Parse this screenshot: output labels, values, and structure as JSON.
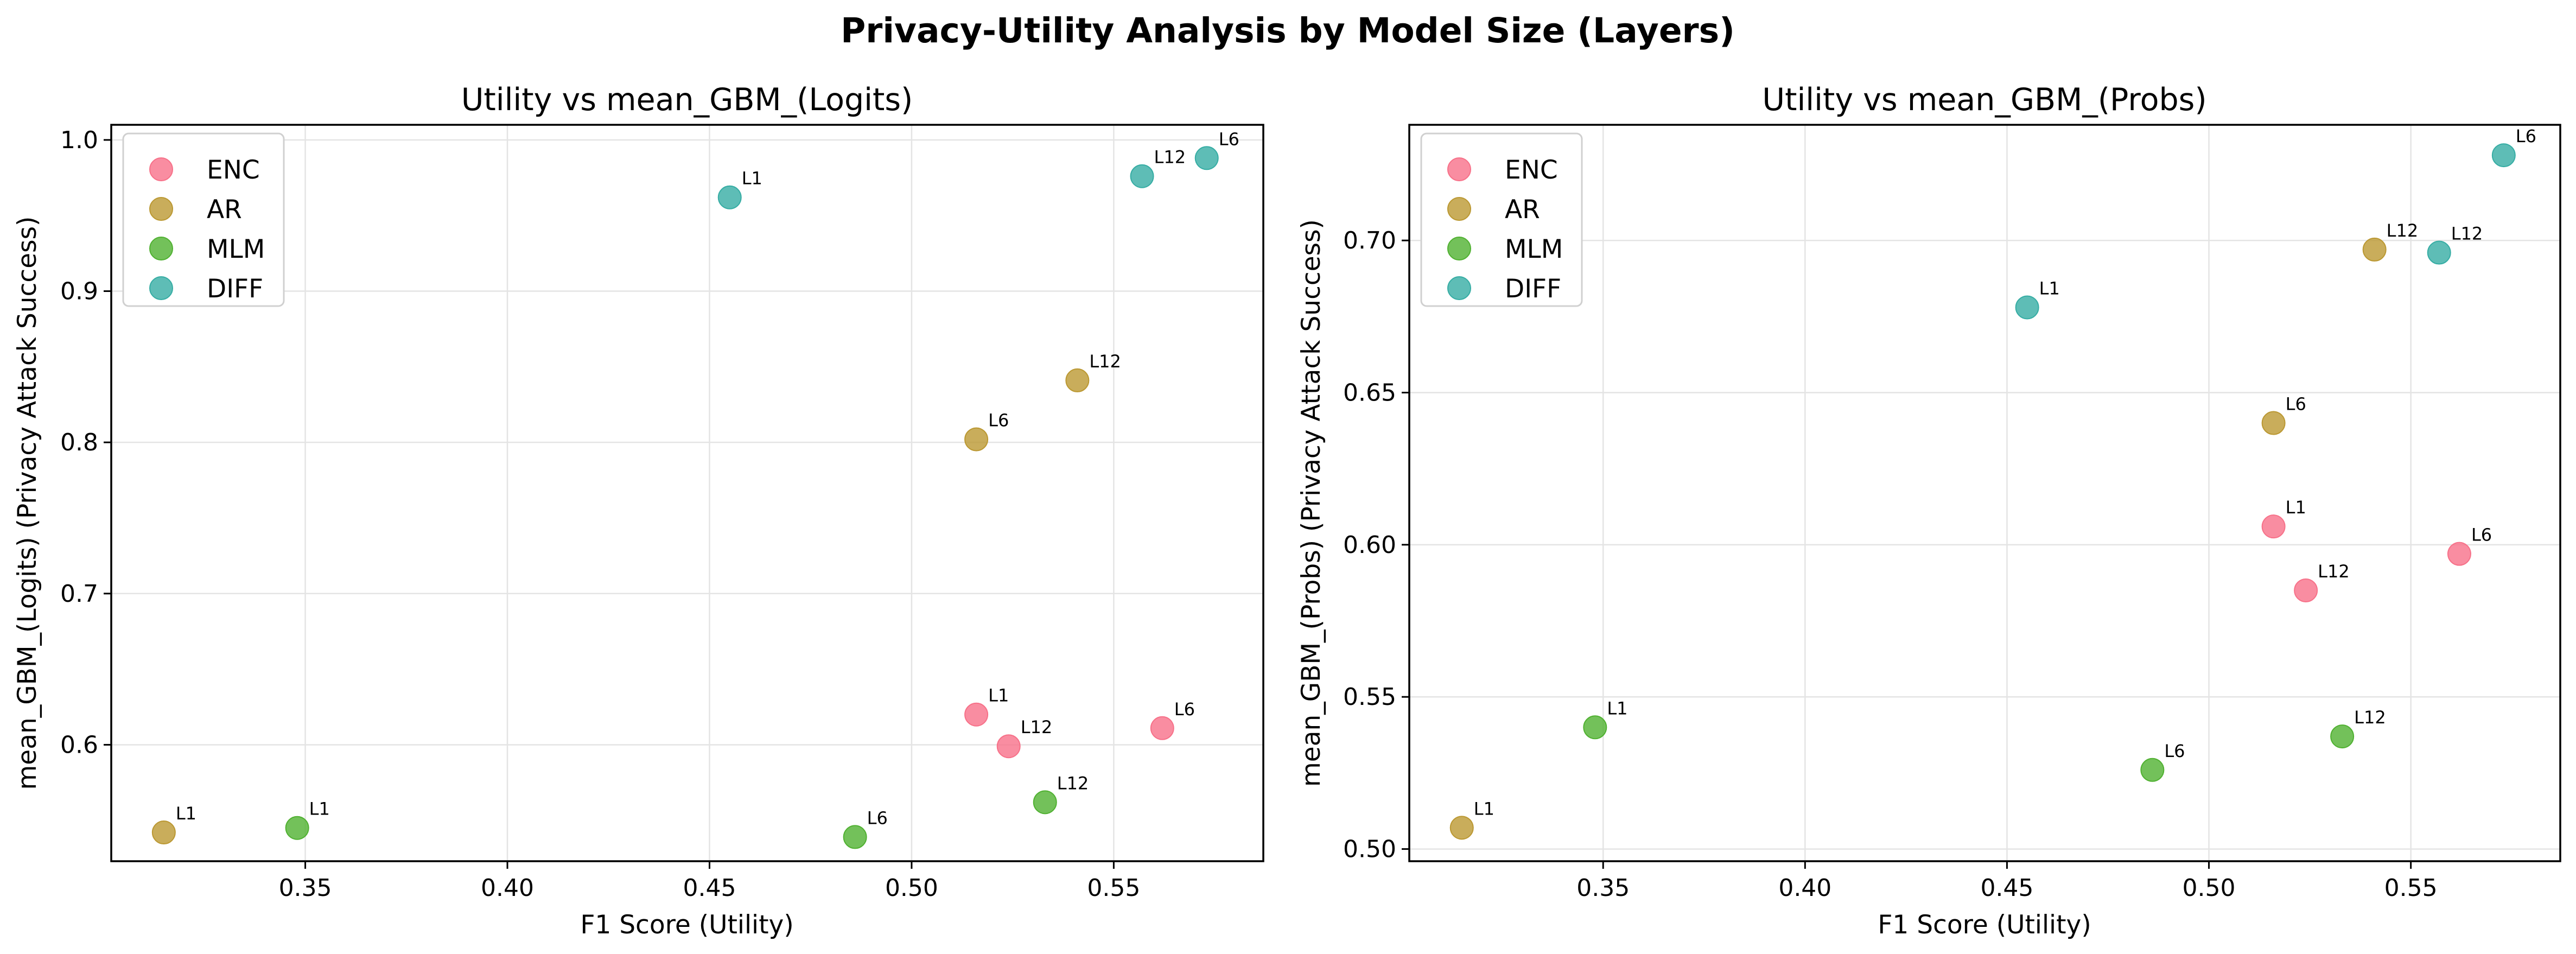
{
  "suptitle": "Privacy-Utility Analysis by Model Size (Layers)",
  "colors": {
    "ENC": "#f77189",
    "AR": "#bb9832",
    "MLM": "#50b131",
    "DIFF": "#36ada4"
  },
  "chart_data": [
    {
      "type": "scatter",
      "title": "Utility vs mean_GBM_(Logits)",
      "xlabel": "F1 Score (Utility)",
      "ylabel": "mean_GBM_(Logits) (Privacy Attack Success)",
      "xlim": [
        0.302,
        0.587
      ],
      "ylim": [
        0.523,
        1.01
      ],
      "xticks": [
        "0.35",
        "0.40",
        "0.45",
        "0.50",
        "0.55"
      ],
      "yticks": [
        "0.6",
        "0.7",
        "0.8",
        "0.9",
        "1.0"
      ],
      "legend": {
        "position": "upper-left",
        "entries": [
          "ENC",
          "AR",
          "MLM",
          "DIFF"
        ]
      },
      "series": [
        {
          "name": "ENC",
          "points": [
            {
              "label": "L1",
              "x": 0.516,
              "y": 0.62
            },
            {
              "label": "L12",
              "x": 0.524,
              "y": 0.599
            },
            {
              "label": "L6",
              "x": 0.562,
              "y": 0.611
            }
          ]
        },
        {
          "name": "AR",
          "points": [
            {
              "label": "L1",
              "x": 0.315,
              "y": 0.542
            },
            {
              "label": "L6",
              "x": 0.516,
              "y": 0.802
            },
            {
              "label": "L12",
              "x": 0.541,
              "y": 0.841
            }
          ]
        },
        {
          "name": "MLM",
          "points": [
            {
              "label": "L1",
              "x": 0.348,
              "y": 0.545
            },
            {
              "label": "L6",
              "x": 0.486,
              "y": 0.539
            },
            {
              "label": "L12",
              "x": 0.533,
              "y": 0.562
            }
          ]
        },
        {
          "name": "DIFF",
          "points": [
            {
              "label": "L1",
              "x": 0.455,
              "y": 0.962
            },
            {
              "label": "L12",
              "x": 0.557,
              "y": 0.976
            },
            {
              "label": "L6",
              "x": 0.573,
              "y": 0.988
            }
          ]
        }
      ]
    },
    {
      "type": "scatter",
      "title": "Utility vs mean_GBM_(Probs)",
      "xlabel": "F1 Score (Utility)",
      "ylabel": "mean_GBM_(Probs) (Privacy Attack Success)",
      "xlim": [
        0.302,
        0.587
      ],
      "ylim": [
        0.496,
        0.738
      ],
      "xticks": [
        "0.35",
        "0.40",
        "0.45",
        "0.50",
        "0.55"
      ],
      "yticks": [
        "0.50",
        "0.55",
        "0.60",
        "0.65",
        "0.70"
      ],
      "legend": {
        "position": "upper-left",
        "entries": [
          "ENC",
          "AR",
          "MLM",
          "DIFF"
        ]
      },
      "series": [
        {
          "name": "ENC",
          "points": [
            {
              "label": "L1",
              "x": 0.516,
              "y": 0.606
            },
            {
              "label": "L12",
              "x": 0.524,
              "y": 0.585
            },
            {
              "label": "L6",
              "x": 0.562,
              "y": 0.597
            }
          ]
        },
        {
          "name": "AR",
          "points": [
            {
              "label": "L1",
              "x": 0.315,
              "y": 0.507
            },
            {
              "label": "L6",
              "x": 0.516,
              "y": 0.64
            },
            {
              "label": "L12",
              "x": 0.541,
              "y": 0.697
            }
          ]
        },
        {
          "name": "MLM",
          "points": [
            {
              "label": "L1",
              "x": 0.348,
              "y": 0.54
            },
            {
              "label": "L6",
              "x": 0.486,
              "y": 0.526
            },
            {
              "label": "L12",
              "x": 0.533,
              "y": 0.537
            }
          ]
        },
        {
          "name": "DIFF",
          "points": [
            {
              "label": "L1",
              "x": 0.455,
              "y": 0.678
            },
            {
              "label": "L12",
              "x": 0.557,
              "y": 0.696
            },
            {
              "label": "L6",
              "x": 0.573,
              "y": 0.728
            }
          ]
        }
      ]
    }
  ]
}
